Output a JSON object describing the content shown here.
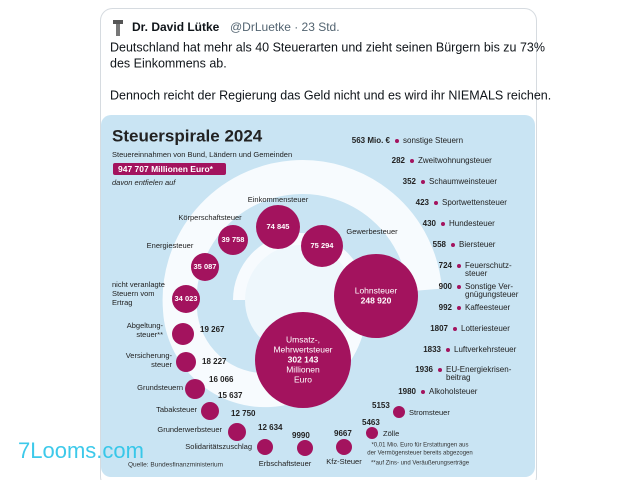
{
  "tweet": {
    "author": "Dr. David Lütke",
    "meta": "@DrLuetke · 23 Std.",
    "text": [
      "Deutschland hat mehr als 40 Steuerarten und zieht seinen Bürgern bis zu 73%",
      "des Einkommens ab.",
      "Dennoch reicht der Regierung das Geld nicht und es wird ihr NIEMALS reichen."
    ]
  },
  "infographic": {
    "title": "Steuerspirale 2024",
    "subtitle": "Steuereinnahmen von Bund, Ländern und Gemeinden",
    "total": "947 707 Millionen Euro*",
    "note": "davon entfielen auf",
    "bubbles": [
      {
        "label": [
          "Einkommensteuer"
        ],
        "value": "74 845"
      },
      {
        "label": [
          "Körperschaftsteuer"
        ],
        "value": "39 758"
      },
      {
        "label": [
          "Gewerbesteuer"
        ],
        "value": "75 294"
      },
      {
        "label": [
          "Energiesteuer"
        ],
        "value": "35 087"
      },
      {
        "label": [
          "nicht veranlagte",
          "Steuern vom",
          "Ertrag"
        ],
        "value": "34 023"
      },
      {
        "label": [
          "Abgeltung-",
          "steuer**"
        ],
        "value": "19 267"
      },
      {
        "label": [
          "Versicherung-",
          "steuer"
        ],
        "value": "18 227"
      },
      {
        "label": [
          "Grundsteuern"
        ],
        "value": "16 066"
      },
      {
        "label": [
          "Tabaksteuer"
        ],
        "value": "15 637"
      },
      {
        "label": [
          "Grunderwerbsteuer"
        ],
        "value": "12 750"
      },
      {
        "label": [
          "Solidaritätszuschlag"
        ],
        "value": "12 634"
      },
      {
        "label": [
          "Erbschaftsteuer"
        ],
        "value": "9990"
      },
      {
        "label": [
          "Kfz-Steuer"
        ],
        "value": "9667"
      },
      {
        "label": [
          "Zölle"
        ],
        "value": "5463"
      },
      {
        "label": [
          "Stromsteuer"
        ],
        "value": "5153"
      },
      {
        "label": [
          "Lohnsteuer"
        ],
        "value": "248 920"
      },
      {
        "label": [
          "Umsatz-,",
          "Mehrwertsteuer"
        ],
        "value": "302 143",
        "unit": [
          "Millionen",
          "Euro"
        ]
      }
    ],
    "list": [
      {
        "value": "563 Mio. €",
        "label": [
          "sonstige Steuern"
        ]
      },
      {
        "value": "282",
        "label": [
          "Zweitwohnungsteuer"
        ]
      },
      {
        "value": "352",
        "label": [
          "Schaumweinsteuer"
        ]
      },
      {
        "value": "423",
        "label": [
          "Sportwettensteuer"
        ]
      },
      {
        "value": "430",
        "label": [
          "Hundesteuer"
        ]
      },
      {
        "value": "558",
        "label": [
          "Biersteuer"
        ]
      },
      {
        "value": "724",
        "label": [
          "Feuerschutz-",
          "steuer"
        ]
      },
      {
        "value": "900",
        "label": [
          "Sonstige Ver-",
          "gnügungsteuer"
        ]
      },
      {
        "value": "992",
        "label": [
          "Kaffeesteuer"
        ]
      },
      {
        "value": "1807",
        "label": [
          "Lotteriesteuer"
        ]
      },
      {
        "value": "1833",
        "label": [
          "Luftverkehrsteuer"
        ]
      },
      {
        "value": "1936",
        "label": [
          "EU-Energiekrisen-",
          "beitrag"
        ]
      },
      {
        "value": "1980",
        "label": [
          "Alkoholsteuer"
        ]
      }
    ],
    "footnotes": [
      "*0,01 Mio. Euro für Erstattungen aus",
      "der Vermögensteuer bereits abgezogen",
      "**auf Zins- und Veräußerungserträge"
    ],
    "source": "Quelle: Bundesfinanzministerium"
  },
  "watermark": "7Looms.com"
}
